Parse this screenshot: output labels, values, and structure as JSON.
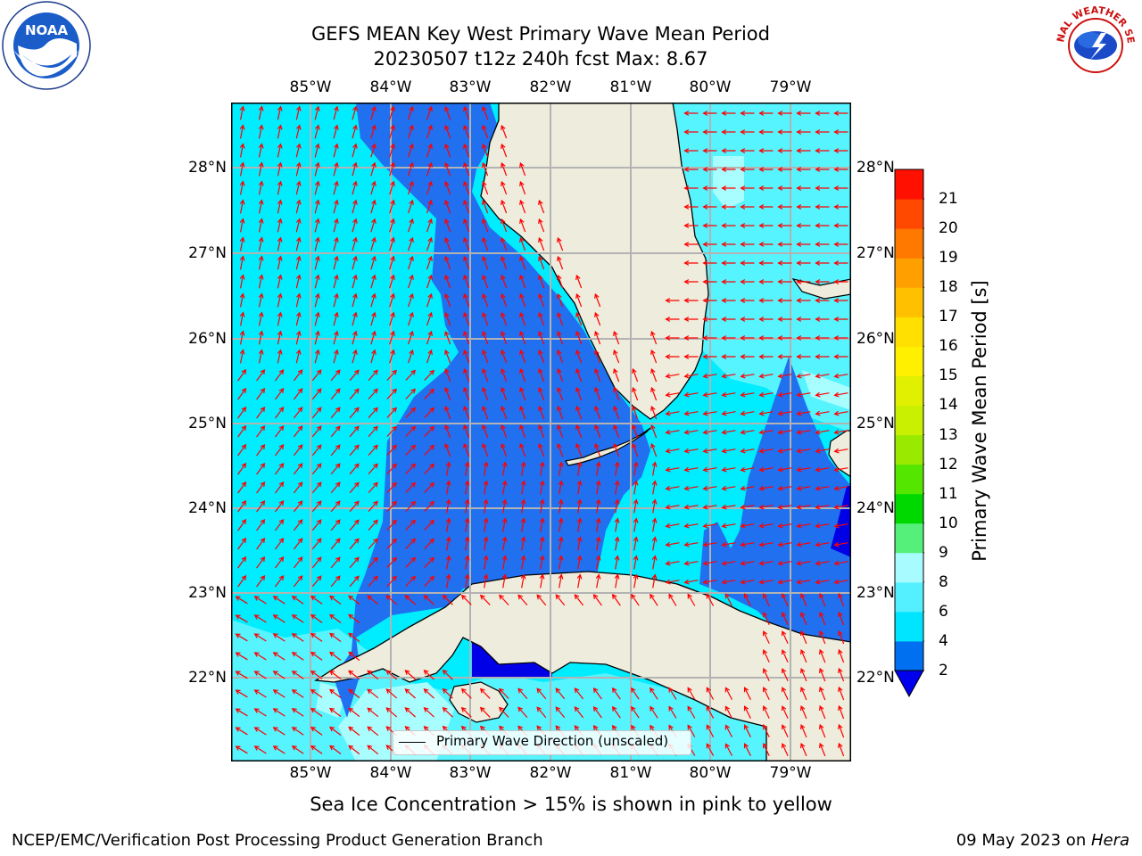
{
  "title": {
    "line1": "GEFS MEAN Key West Primary Wave Mean Period",
    "line2": "20230507 t12z 240h fcst   Max: 8.67"
  },
  "logos": {
    "left": "NOAA",
    "right": "NATIONAL WEATHER SERVICE"
  },
  "axes": {
    "lon_labels": [
      "85°W",
      "84°W",
      "83°W",
      "82°W",
      "81°W",
      "80°W",
      "79°W"
    ],
    "lat_labels": [
      "28°N",
      "27°N",
      "26°N",
      "25°N",
      "24°N",
      "23°N",
      "22°N"
    ]
  },
  "legend": {
    "label": "Primary Wave Direction (unscaled)"
  },
  "colorbar": {
    "title": "Primary Wave Mean Period [s]",
    "ticks": [
      "2",
      "4",
      "6",
      "8",
      "9",
      "10",
      "11",
      "12",
      "13",
      "14",
      "15",
      "16",
      "17",
      "18",
      "19",
      "20",
      "21"
    ],
    "colors": [
      "#0070f0",
      "#00e5ff",
      "#55f0ff",
      "#a8fcff",
      "#55f07a",
      "#00d900",
      "#55e600",
      "#99ea00",
      "#c8f000",
      "#e0f000",
      "#fff000",
      "#ffe000",
      "#ffc000",
      "#ffa000",
      "#ff7800",
      "#ff4800",
      "#ff1000"
    ],
    "under_color": "#0000ee"
  },
  "colors": {
    "land": "#eeecdc",
    "deep_blue": "#2070f0",
    "cyan": "#00ecff",
    "light_cyan": "#55f4ff",
    "pale_cyan": "#a8fdff",
    "dark_blue": "#0000e6",
    "arrows": "#ff0000"
  },
  "note": "Sea Ice Concentration > 15% is shown in pink to yellow",
  "footer": {
    "left": "NCEP/EMC/Verification Post Processing Product Generation Branch",
    "date": "09 May 2023 on ",
    "host": "Hera"
  }
}
